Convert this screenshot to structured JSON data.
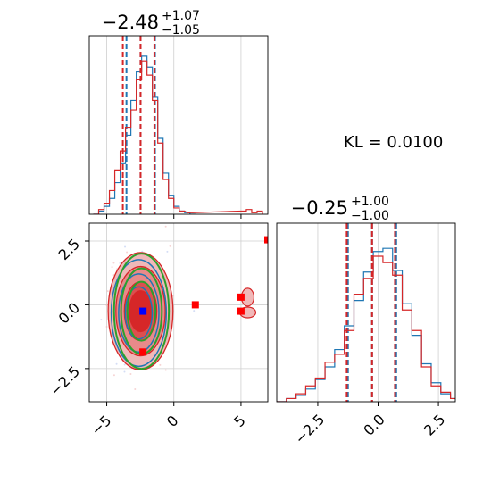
{
  "chart_data": [
    {
      "type": "histogram",
      "panel": "top-left marginal",
      "title": {
        "value": "−2.48",
        "sup": "+1.07",
        "sub": "−1.05"
      },
      "xlim": [
        -6.3,
        7.0
      ],
      "x_ticks": [
        -5,
        0,
        5
      ],
      "x_tick_labels_shown": false,
      "grid": true,
      "series": [
        {
          "color": "#1f77b4",
          "bins": [
            [
              -6.0,
              0
            ],
            [
              -5.6,
              0.02
            ],
            [
              -5.2,
              0.05
            ],
            [
              -4.8,
              0.1
            ],
            [
              -4.4,
              0.2
            ],
            [
              -4.0,
              0.32
            ],
            [
              -3.6,
              0.5
            ],
            [
              -3.2,
              0.72
            ],
            [
              -2.8,
              0.9
            ],
            [
              -2.4,
              1.0
            ],
            [
              -2.0,
              0.93
            ],
            [
              -1.6,
              0.74
            ],
            [
              -1.2,
              0.48
            ],
            [
              -0.8,
              0.26
            ],
            [
              -0.4,
              0.12
            ],
            [
              0.0,
              0.05
            ],
            [
              0.4,
              0.02
            ],
            [
              0.8,
              0.01
            ],
            [
              1.2,
              0
            ]
          ],
          "quantile_lines": [
            -3.53,
            -2.48,
            -1.41
          ],
          "quantile_style": "dashed"
        },
        {
          "color": "#d62728",
          "bins": [
            [
              -6.0,
              0
            ],
            [
              -5.6,
              0.03
            ],
            [
              -5.2,
              0.07
            ],
            [
              -4.8,
              0.15
            ],
            [
              -4.4,
              0.28
            ],
            [
              -4.0,
              0.4
            ],
            [
              -3.6,
              0.55
            ],
            [
              -3.2,
              0.66
            ],
            [
              -2.8,
              0.85
            ],
            [
              -2.4,
              0.97
            ],
            [
              -2.0,
              0.88
            ],
            [
              -1.6,
              0.72
            ],
            [
              -1.2,
              0.45
            ],
            [
              -0.8,
              0.22
            ],
            [
              -0.4,
              0.1
            ],
            [
              0.0,
              0.04
            ],
            [
              0.4,
              0.02
            ],
            [
              1.0,
              0.01
            ],
            [
              5.0,
              0.02
            ],
            [
              5.4,
              0.03
            ],
            [
              5.8,
              0.01
            ],
            [
              6.2,
              0.02
            ]
          ],
          "quantile_lines": [
            -3.8,
            -2.48,
            -1.45
          ],
          "quantile_style": "dashed"
        }
      ]
    },
    {
      "type": "contour",
      "panel": "bottom-left 2D",
      "xlim": [
        -6.3,
        7.0
      ],
      "ylim": [
        -3.8,
        3.2
      ],
      "x_ticks": [
        -5,
        0,
        5
      ],
      "x_tick_labels": [
        "−5",
        "0",
        "5"
      ],
      "y_ticks": [
        2.5,
        0.0,
        -2.5
      ],
      "y_tick_labels": [
        "2.5",
        "0.0",
        "−2.5"
      ],
      "grid": true,
      "contour_colors": [
        "#1f77b4",
        "#d62728",
        "#2ca02c"
      ],
      "truth_markers": [
        {
          "x": -2.3,
          "y": -0.25,
          "color": "#0000ff",
          "marker": "square"
        },
        {
          "x": -2.3,
          "y": -1.85,
          "color": "#ff0000",
          "marker": "square"
        },
        {
          "x": 1.6,
          "y": 0.0,
          "color": "#ff0000",
          "marker": "square"
        },
        {
          "x": 5.0,
          "y": 0.3,
          "color": "#ff0000",
          "marker": "square"
        },
        {
          "x": 5.0,
          "y": -0.25,
          "color": "#ff0000",
          "marker": "square"
        },
        {
          "x": 7.0,
          "y": 2.55,
          "color": "#ff0000",
          "marker": "square"
        }
      ]
    },
    {
      "type": "histogram",
      "panel": "bottom-right marginal",
      "title": {
        "value": "−0.25",
        "sup": "+1.00",
        "sub": "−1.00"
      },
      "xlim": [
        -4.2,
        3.2
      ],
      "x_ticks": [
        -2.5,
        0.0,
        2.5
      ],
      "x_tick_labels": [
        "−2.5",
        "0.0",
        "2.5"
      ],
      "grid": true,
      "series": [
        {
          "color": "#1f77b4",
          "bins": [
            [
              -4.2,
              0
            ],
            [
              -3.8,
              0.02
            ],
            [
              -3.4,
              0.04
            ],
            [
              -3.0,
              0.08
            ],
            [
              -2.6,
              0.14
            ],
            [
              -2.2,
              0.22
            ],
            [
              -1.8,
              0.33
            ],
            [
              -1.4,
              0.48
            ],
            [
              -1.0,
              0.64
            ],
            [
              -0.6,
              0.82
            ],
            [
              -0.2,
              0.95
            ],
            [
              0.2,
              0.97
            ],
            [
              0.6,
              0.83
            ],
            [
              1.0,
              0.62
            ],
            [
              1.4,
              0.42
            ],
            [
              1.8,
              0.24
            ],
            [
              2.2,
              0.12
            ],
            [
              2.6,
              0.05
            ],
            [
              3.0,
              0.02
            ]
          ],
          "quantile_lines": [
            -1.25,
            -0.25,
            0.75
          ],
          "quantile_style": "dashed"
        },
        {
          "color": "#d62728",
          "bins": [
            [
              -4.2,
              0
            ],
            [
              -3.8,
              0.02
            ],
            [
              -3.4,
              0.05
            ],
            [
              -3.0,
              0.1
            ],
            [
              -2.6,
              0.15
            ],
            [
              -2.2,
              0.25
            ],
            [
              -1.8,
              0.3
            ],
            [
              -1.4,
              0.45
            ],
            [
              -1.0,
              0.68
            ],
            [
              -0.6,
              0.78
            ],
            [
              -0.2,
              0.92
            ],
            [
              0.2,
              0.88
            ],
            [
              0.6,
              0.8
            ],
            [
              1.0,
              0.58
            ],
            [
              1.4,
              0.45
            ],
            [
              1.8,
              0.22
            ],
            [
              2.2,
              0.1
            ],
            [
              2.6,
              0.06
            ],
            [
              3.0,
              0.02
            ]
          ],
          "quantile_lines": [
            -1.3,
            -0.25,
            0.7
          ],
          "quantile_style": "dashed"
        }
      ]
    }
  ],
  "annotation": {
    "label": "KL = 0.0100"
  }
}
